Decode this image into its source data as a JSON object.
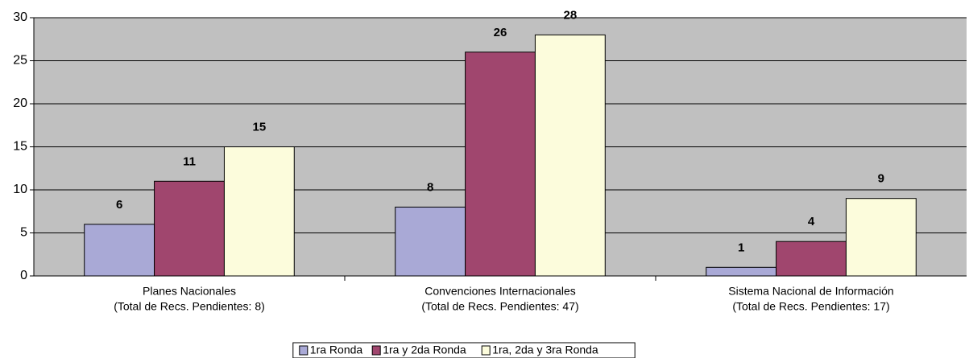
{
  "chart_data": {
    "type": "bar",
    "categories": [
      [
        "Planes Nacionales",
        "(Total de Recs. Pendientes: 8)"
      ],
      [
        "Convenciones Internacionales",
        "(Total de Recs. Pendientes: 47)"
      ],
      [
        "Sistema Nacional de Información",
        "(Total de Recs. Pendientes: 17)"
      ]
    ],
    "series": [
      {
        "name": "1ra Ronda",
        "color": "#a9a9d6",
        "values": [
          6,
          8,
          1
        ]
      },
      {
        "name": "1ra y 2da Ronda",
        "color": "#a0466e",
        "values": [
          11,
          26,
          4
        ]
      },
      {
        "name": "1ra, 2da y 3ra Ronda",
        "color": "#fcfcdc",
        "values": [
          15,
          28,
          9
        ]
      }
    ],
    "ylim": [
      0,
      30
    ],
    "yticks": [
      0,
      5,
      10,
      15,
      20,
      25,
      30
    ],
    "grid": true,
    "legend": "bottom"
  }
}
